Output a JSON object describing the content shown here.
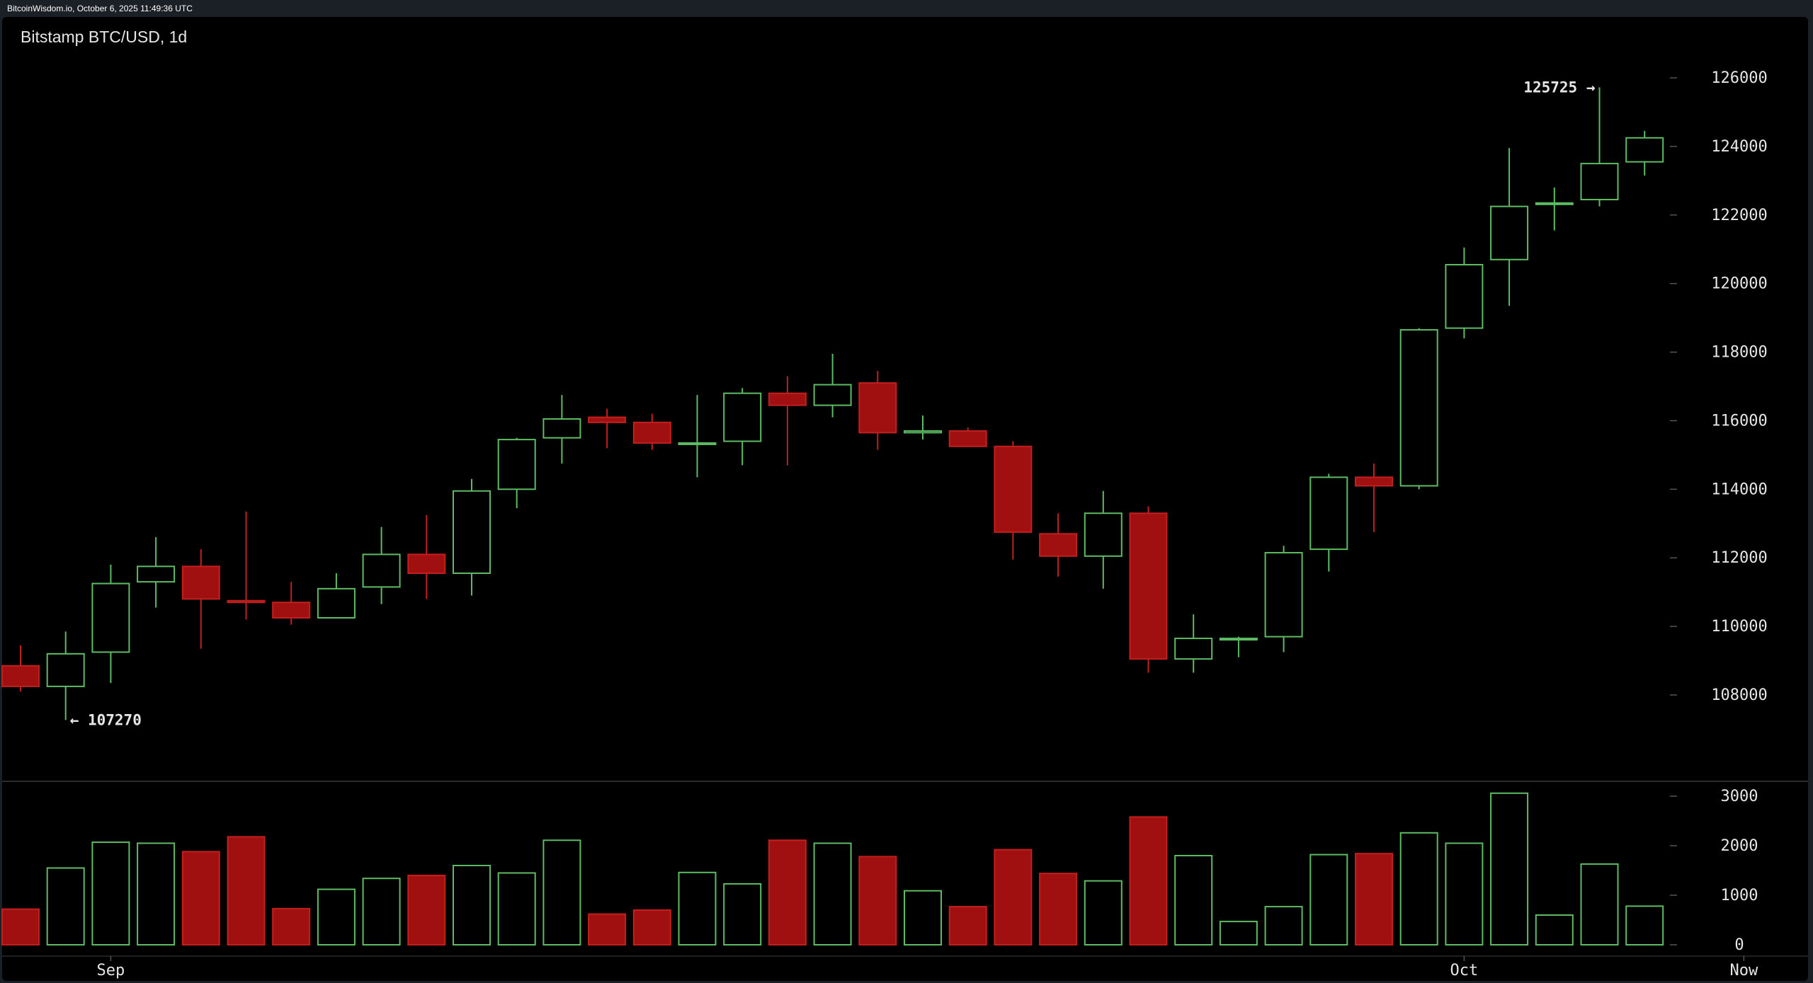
{
  "header": {
    "source_text": "BitcoinWisdom.io, October 6, 2025 11:49:36 UTC",
    "chart_title": "Bitstamp BTC/USD, 1d"
  },
  "colors": {
    "up": "#5dbb63",
    "down_fill": "#a01010",
    "down_line": "#c21f1f",
    "axis_text": "#e6e6e6",
    "separator": "#3a3a3a"
  },
  "chart_data": {
    "type": "candlestick",
    "title": "Bitstamp BTC/USD, 1d",
    "price_axis": {
      "ticks": [
        108000,
        110000,
        112000,
        114000,
        116000,
        118000,
        120000,
        122000,
        124000,
        126000
      ],
      "range": [
        106000,
        126800
      ]
    },
    "volume_axis": {
      "ticks": [
        0,
        1000,
        2000,
        3000
      ],
      "range": [
        0,
        3100
      ]
    },
    "x_labels": [
      {
        "text": "Sep",
        "index": 2
      },
      {
        "text": "Oct",
        "index": 32
      },
      {
        "text": "Now",
        "index": 38.2
      }
    ],
    "annotations": [
      {
        "text": "← 107270",
        "index": 1,
        "value": 107270,
        "side": "right"
      },
      {
        "text": "125725 →",
        "index": 35,
        "value": 125725,
        "side": "left"
      }
    ],
    "candles": [
      {
        "o": 108850,
        "h": 109450,
        "l": 108100,
        "c": 108250,
        "v": 720
      },
      {
        "o": 108250,
        "h": 109850,
        "l": 107270,
        "c": 109200,
        "v": 1550
      },
      {
        "o": 109250,
        "h": 111800,
        "l": 108350,
        "c": 111250,
        "v": 2070
      },
      {
        "o": 111300,
        "h": 112600,
        "l": 110550,
        "c": 111750,
        "v": 2050
      },
      {
        "o": 111750,
        "h": 112250,
        "l": 109350,
        "c": 110800,
        "v": 1880
      },
      {
        "o": 110750,
        "h": 113350,
        "l": 110200,
        "c": 110700,
        "v": 2180
      },
      {
        "o": 110700,
        "h": 111300,
        "l": 110050,
        "c": 110250,
        "v": 730
      },
      {
        "o": 110250,
        "h": 111550,
        "l": 110250,
        "c": 111100,
        "v": 1120
      },
      {
        "o": 111150,
        "h": 112900,
        "l": 110650,
        "c": 112100,
        "v": 1340
      },
      {
        "o": 112100,
        "h": 113250,
        "l": 110800,
        "c": 111550,
        "v": 1400
      },
      {
        "o": 111550,
        "h": 114300,
        "l": 110900,
        "c": 113950,
        "v": 1600
      },
      {
        "o": 114000,
        "h": 115500,
        "l": 113450,
        "c": 115450,
        "v": 1450
      },
      {
        "o": 115500,
        "h": 116750,
        "l": 114750,
        "c": 116050,
        "v": 2110
      },
      {
        "o": 116100,
        "h": 116350,
        "l": 115200,
        "c": 115950,
        "v": 620
      },
      {
        "o": 115950,
        "h": 116200,
        "l": 115150,
        "c": 115350,
        "v": 700
      },
      {
        "o": 115350,
        "h": 116750,
        "l": 114350,
        "c": 115350,
        "v": 1460
      },
      {
        "o": 115400,
        "h": 116950,
        "l": 114700,
        "c": 116800,
        "v": 1230
      },
      {
        "o": 116800,
        "h": 117300,
        "l": 114700,
        "c": 116450,
        "v": 2110
      },
      {
        "o": 116450,
        "h": 117950,
        "l": 116100,
        "c": 117050,
        "v": 2050
      },
      {
        "o": 117100,
        "h": 117450,
        "l": 115150,
        "c": 115650,
        "v": 1780
      },
      {
        "o": 115650,
        "h": 116150,
        "l": 115450,
        "c": 115700,
        "v": 1090
      },
      {
        "o": 115700,
        "h": 115800,
        "l": 115250,
        "c": 115250,
        "v": 770
      },
      {
        "o": 115250,
        "h": 115400,
        "l": 111950,
        "c": 112750,
        "v": 1920
      },
      {
        "o": 112700,
        "h": 113300,
        "l": 111450,
        "c": 112050,
        "v": 1440
      },
      {
        "o": 112050,
        "h": 113950,
        "l": 111100,
        "c": 113300,
        "v": 1290
      },
      {
        "o": 113300,
        "h": 113500,
        "l": 108650,
        "c": 109050,
        "v": 2580
      },
      {
        "o": 109050,
        "h": 110350,
        "l": 108650,
        "c": 109650,
        "v": 1800
      },
      {
        "o": 109650,
        "h": 109700,
        "l": 109100,
        "c": 109650,
        "v": 470
      },
      {
        "o": 109700,
        "h": 112350,
        "l": 109250,
        "c": 112150,
        "v": 770
      },
      {
        "o": 112250,
        "h": 114450,
        "l": 111600,
        "c": 114350,
        "v": 1820
      },
      {
        "o": 114350,
        "h": 114750,
        "l": 112750,
        "c": 114100,
        "v": 1840
      },
      {
        "o": 114100,
        "h": 118700,
        "l": 114000,
        "c": 118650,
        "v": 2260
      },
      {
        "o": 118700,
        "h": 121050,
        "l": 118400,
        "c": 120550,
        "v": 2050
      },
      {
        "o": 120700,
        "h": 123950,
        "l": 119350,
        "c": 122250,
        "v": 3060
      },
      {
        "o": 122350,
        "h": 122800,
        "l": 121550,
        "c": 122350,
        "v": 600
      },
      {
        "o": 122450,
        "h": 125725,
        "l": 122250,
        "c": 123500,
        "v": 1630
      },
      {
        "o": 123550,
        "h": 124450,
        "l": 123150,
        "c": 124250,
        "v": 780
      }
    ]
  }
}
